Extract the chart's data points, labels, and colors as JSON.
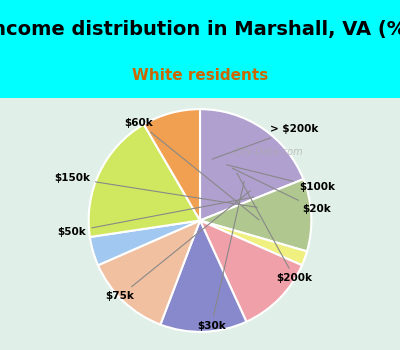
{
  "title": "Income distribution in Marshall, VA (%)",
  "subtitle": "White residents",
  "background_top": "#00FFFF",
  "background_chart": "#e8f5e8",
  "labels": [
    "> $200k",
    "$100k",
    "$20k",
    "$200k",
    "$30k",
    "$75k",
    "$50k",
    "$150k",
    "$60k"
  ],
  "sizes": [
    18,
    10,
    2,
    11,
    12,
    12,
    4,
    18,
    8
  ],
  "colors": [
    "#b0a0d0",
    "#b0c890",
    "#f0f080",
    "#f0a0a8",
    "#8888cc",
    "#f0c0a0",
    "#a0c8f0",
    "#d0e860",
    "#f0a050"
  ],
  "title_fontsize": 14,
  "subtitle_fontsize": 11,
  "watermark": "City-Data.com"
}
